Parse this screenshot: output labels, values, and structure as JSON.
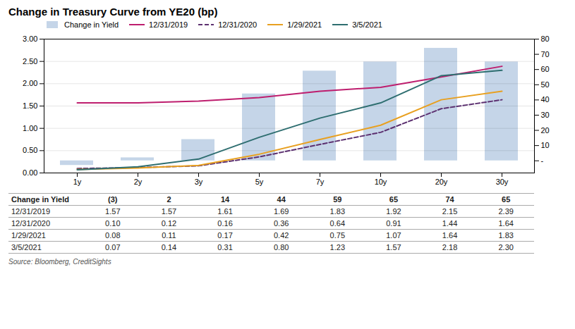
{
  "chart_data": {
    "type": "bar",
    "title": "Change in Treasury Curve from YE20 (bp)",
    "categories": [
      "1y",
      "2y",
      "3y",
      "5y",
      "7y",
      "10y",
      "20y",
      "30y"
    ],
    "series": [
      {
        "name": "Change in Yield",
        "type": "bar",
        "axis": "y2",
        "color": "#c5d5e8",
        "values": [
          -3,
          2,
          14,
          44,
          59,
          65,
          74,
          65
        ]
      },
      {
        "name": "12/31/2019",
        "type": "line",
        "line_style": "solid",
        "color": "#be1e6e",
        "values": [
          1.57,
          1.57,
          1.61,
          1.69,
          1.83,
          1.92,
          2.15,
          2.39
        ]
      },
      {
        "name": "12/31/2020",
        "type": "line",
        "line_style": "dashed",
        "color": "#5c3070",
        "values": [
          0.1,
          0.12,
          0.16,
          0.36,
          0.64,
          0.91,
          1.44,
          1.64
        ]
      },
      {
        "name": "1/29/2021",
        "type": "line",
        "line_style": "solid",
        "color": "#e8a020",
        "values": [
          0.08,
          0.11,
          0.17,
          0.42,
          0.75,
          1.07,
          1.64,
          1.83
        ]
      },
      {
        "name": "3/5/2021",
        "type": "line",
        "line_style": "solid",
        "color": "#2e6e70",
        "values": [
          0.07,
          0.14,
          0.31,
          0.8,
          1.23,
          1.57,
          2.18,
          2.3
        ]
      }
    ],
    "ylim": [
      0.0,
      3.0
    ],
    "yticks": [
      {
        "value": 0.0,
        "label": "0.00"
      },
      {
        "value": 0.5,
        "label": "0.50"
      },
      {
        "value": 1.0,
        "label": "1.00"
      },
      {
        "value": 1.5,
        "label": "1.50"
      },
      {
        "value": 2.0,
        "label": "2.00"
      },
      {
        "value": 2.5,
        "label": "2.50"
      },
      {
        "value": 3.0,
        "label": "3.00"
      }
    ],
    "y2lim": [
      -8,
      80
    ],
    "y2ticks": [
      {
        "value": 0,
        "label": "-"
      },
      10,
      20,
      30,
      40,
      50,
      60,
      70,
      80
    ],
    "grid": true,
    "legend": "upper left",
    "table_rows": [
      [
        "Change in Yield",
        "(3)",
        "2",
        "14",
        "44",
        "59",
        "65",
        "74",
        "65"
      ],
      [
        "12/31/2019",
        "1.57",
        "1.57",
        "1.61",
        "1.69",
        "1.83",
        "1.92",
        "2.15",
        "2.39"
      ],
      [
        "12/31/2020",
        "0.10",
        "0.12",
        "0.16",
        "0.36",
        "0.64",
        "0.91",
        "1.44",
        "1.64"
      ],
      [
        "1/29/2021",
        "0.08",
        "0.11",
        "0.17",
        "0.42",
        "0.75",
        "1.07",
        "1.64",
        "1.83"
      ],
      [
        "3/5/2021",
        "0.07",
        "0.14",
        "0.31",
        "0.80",
        "1.23",
        "1.57",
        "2.18",
        "2.30"
      ]
    ],
    "source": "Source: Bloomberg, CreditSights"
  }
}
